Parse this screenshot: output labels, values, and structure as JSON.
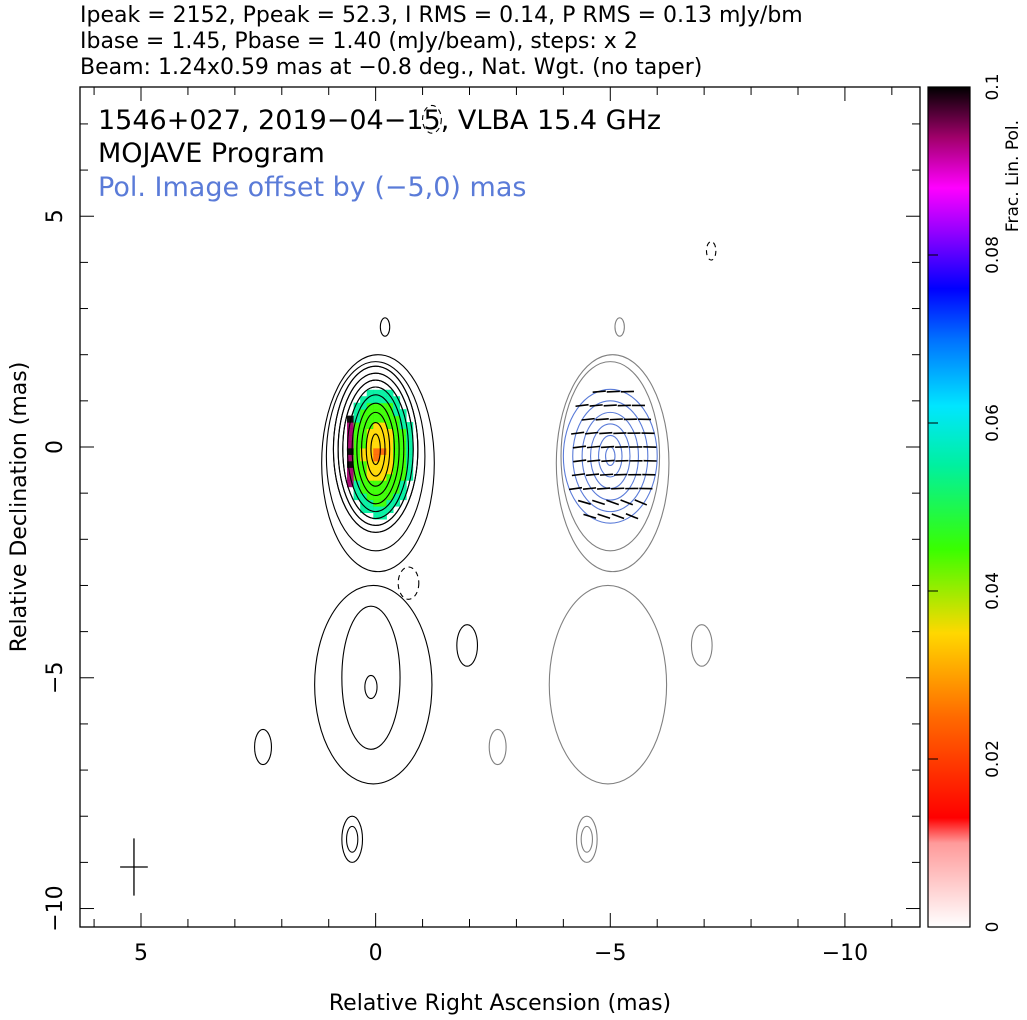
{
  "header": {
    "line1": "Ipeak = 2152, Ppeak = 52.3, I RMS = 0.14, P RMS = 0.13 mJy/bm",
    "line2": "Ibase = 1.45, Pbase = 1.40 (mJy/beam), steps: x 2",
    "line3": "Beam: 1.24x0.59 mas at −0.8 deg., Nat. Wgt. (no taper)"
  },
  "plot": {
    "title_line1": "1546+027, 2019−04−15, VLBA 15.4 GHz",
    "title_line2": "MOJAVE Program",
    "offset_note": "Pol. Image offset by (−5,0) mas"
  },
  "colors": {
    "stokes_i_contour": "#000000",
    "offset_i_contour": "#808080",
    "pol_contour": "#5a7bd8",
    "offset_note": "#5a7bd8"
  },
  "chart_data": {
    "type": "heatmap",
    "xlabel": "Relative Right Ascension (mas)",
    "ylabel": "Relative Declination (mas)",
    "xlim": [
      6.3,
      -11.6
    ],
    "ylim": [
      -10.4,
      7.8
    ],
    "x_ticks": [
      5,
      0,
      -5,
      -10
    ],
    "x_tick_labels": [
      "5",
      "0",
      "−5",
      "−10"
    ],
    "y_ticks": [
      5,
      0,
      -5,
      -10
    ],
    "y_tick_labels": [
      "5",
      "0",
      "−5",
      "−10"
    ],
    "colorbar": {
      "label": "Frac. Lin. Pol.",
      "range": [
        0,
        0.1
      ],
      "ticks": [
        0,
        0.02,
        0.04,
        0.06,
        0.08,
        0.1
      ],
      "tick_labels": [
        "0",
        "0.02",
        "0.04",
        "0.06",
        "0.08",
        "0.1"
      ],
      "colormap_stops": [
        {
          "v": 0.0,
          "color": "#ffffff"
        },
        {
          "v": 0.01,
          "color": "#ff9a9a"
        },
        {
          "v": 0.013,
          "color": "#ff0000"
        },
        {
          "v": 0.025,
          "color": "#ff6a00"
        },
        {
          "v": 0.035,
          "color": "#ffd800"
        },
        {
          "v": 0.045,
          "color": "#39ff00"
        },
        {
          "v": 0.055,
          "color": "#00f0a0"
        },
        {
          "v": 0.062,
          "color": "#00e6ff"
        },
        {
          "v": 0.07,
          "color": "#0070ff"
        },
        {
          "v": 0.076,
          "color": "#0000ff"
        },
        {
          "v": 0.083,
          "color": "#9900ff"
        },
        {
          "v": 0.088,
          "color": "#ff00ff"
        },
        {
          "v": 0.094,
          "color": "#a0006a"
        },
        {
          "v": 0.1,
          "color": "#000000"
        }
      ]
    },
    "beam": {
      "major_mas": 1.24,
      "minor_mas": 0.59,
      "pa_deg": -0.8,
      "center": [
        5.15,
        -9.1
      ]
    },
    "core_ra": 0,
    "core_dec": 0,
    "pol_offset": [
      -5,
      0
    ],
    "stokes_i_core_contours": [
      {
        "rx": 0.9,
        "ry": 1.8,
        "cx": 0.0,
        "cy": -0.05
      },
      {
        "rx": 0.8,
        "ry": 1.65,
        "cx": 0.0,
        "cy": -0.05
      },
      {
        "rx": 0.7,
        "ry": 1.5,
        "cx": 0.0,
        "cy": -0.05
      },
      {
        "rx": 0.6,
        "ry": 1.35,
        "cx": 0.0,
        "cy": -0.05
      },
      {
        "rx": 0.5,
        "ry": 1.18,
        "cx": 0.0,
        "cy": -0.05
      },
      {
        "rx": 0.4,
        "ry": 1.0,
        "cx": 0.0,
        "cy": -0.05
      },
      {
        "rx": 0.3,
        "ry": 0.8,
        "cx": 0.0,
        "cy": -0.05
      },
      {
        "rx": 0.2,
        "ry": 0.58,
        "cx": 0.0,
        "cy": -0.05
      },
      {
        "rx": 0.1,
        "ry": 0.33,
        "cx": 0.0,
        "cy": -0.05
      }
    ],
    "stokes_i_outer_contours": [
      {
        "rx": 1.05,
        "ry": 2.05,
        "cx": 0.0,
        "cy": -0.2
      },
      {
        "rx": 1.2,
        "ry": 2.35,
        "cx": -0.05,
        "cy": -0.35
      }
    ],
    "jet_contours": [
      {
        "rx": 1.25,
        "ry": 2.15,
        "cx": 0.05,
        "cy": -5.15
      },
      {
        "rx": 0.62,
        "ry": 1.55,
        "cx": 0.1,
        "cy": -5.0
      },
      {
        "rx": 0.13,
        "ry": 0.25,
        "cx": 0.1,
        "cy": -5.2
      }
    ],
    "isolated_contours": [
      {
        "rx": 0.22,
        "ry": 0.5,
        "cx": 0.5,
        "cy": -8.5
      },
      {
        "rx": 0.12,
        "ry": 0.28,
        "cx": 0.5,
        "cy": -8.5
      },
      {
        "rx": 0.22,
        "ry": 0.45,
        "cx": -1.95,
        "cy": -4.3
      },
      {
        "rx": 0.18,
        "ry": 0.38,
        "cx": 2.4,
        "cy": -6.5
      },
      {
        "rx": 0.1,
        "ry": 0.2,
        "cx": -0.2,
        "cy": 2.6
      }
    ],
    "pol_contours": [
      {
        "rx": 1.0,
        "ry": 1.45,
        "cx": -5.0,
        "cy": -0.2
      },
      {
        "rx": 0.8,
        "ry": 1.2,
        "cx": -5.0,
        "cy": -0.2
      },
      {
        "rx": 0.6,
        "ry": 0.95,
        "cx": -5.0,
        "cy": -0.2
      },
      {
        "rx": 0.42,
        "ry": 0.7,
        "cx": -5.0,
        "cy": -0.2
      },
      {
        "rx": 0.25,
        "ry": 0.45,
        "cx": -5.0,
        "cy": -0.2
      },
      {
        "rx": 0.1,
        "ry": 0.2,
        "cx": -5.0,
        "cy": -0.2
      }
    ],
    "frac_pol_core_value": 0.025
  }
}
